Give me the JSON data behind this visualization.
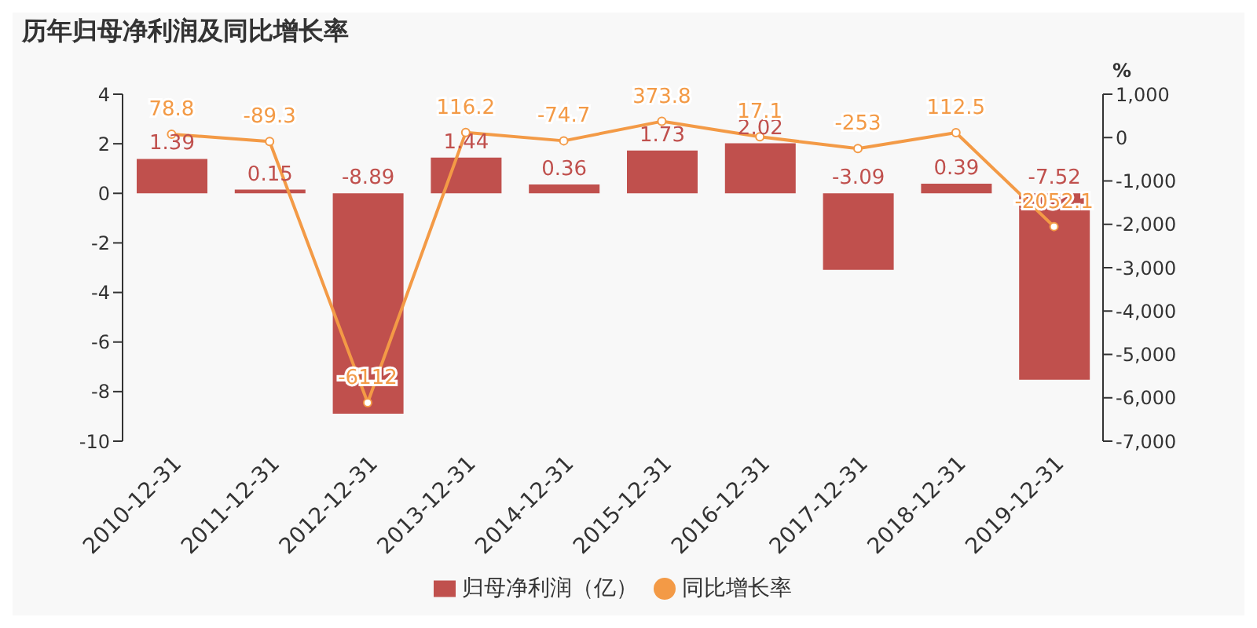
{
  "chart_data": {
    "type": "bar",
    "title": "历年归母净利润及同比增长率",
    "y2label": "%",
    "categories": [
      "2010-12-31",
      "2011-12-31",
      "2012-12-31",
      "2013-12-31",
      "2014-12-31",
      "2015-12-31",
      "2016-12-31",
      "2017-12-31",
      "2018-12-31",
      "2019-12-31"
    ],
    "series": [
      {
        "name": "归母净利润（亿）",
        "color": "#c0504d",
        "values": [
          1.39,
          0.15,
          -8.89,
          1.44,
          0.36,
          1.73,
          2.02,
          -3.09,
          0.39,
          -7.52
        ]
      },
      {
        "name": "同比增长率",
        "type": "line",
        "axis": "y2",
        "color": "#f39a46",
        "marker": "circle",
        "values": [
          78.8,
          -89.3,
          -6112,
          116.2,
          -74.7,
          373.8,
          17.1,
          -253,
          112.5,
          -2052.1
        ]
      }
    ],
    "ylim": [
      -10,
      4
    ],
    "yticks": [
      -10,
      -8,
      -6,
      -4,
      -2,
      0,
      2,
      4
    ],
    "y2lim": [
      -7000,
      1000
    ],
    "y2ticks": [
      {
        "value": -7000,
        "label": "-7,000"
      },
      {
        "value": -6000,
        "label": "-6,000"
      },
      {
        "value": -5000,
        "label": "-5,000"
      },
      {
        "value": -4000,
        "label": "-4,000"
      },
      {
        "value": -3000,
        "label": "-3,000"
      },
      {
        "value": -2000,
        "label": "-2,000"
      },
      {
        "value": -1000,
        "label": "-1,000"
      },
      0,
      {
        "value": 1000,
        "label": "1,000"
      }
    ],
    "data_labels": true,
    "legend": "bottom",
    "grid": false
  }
}
